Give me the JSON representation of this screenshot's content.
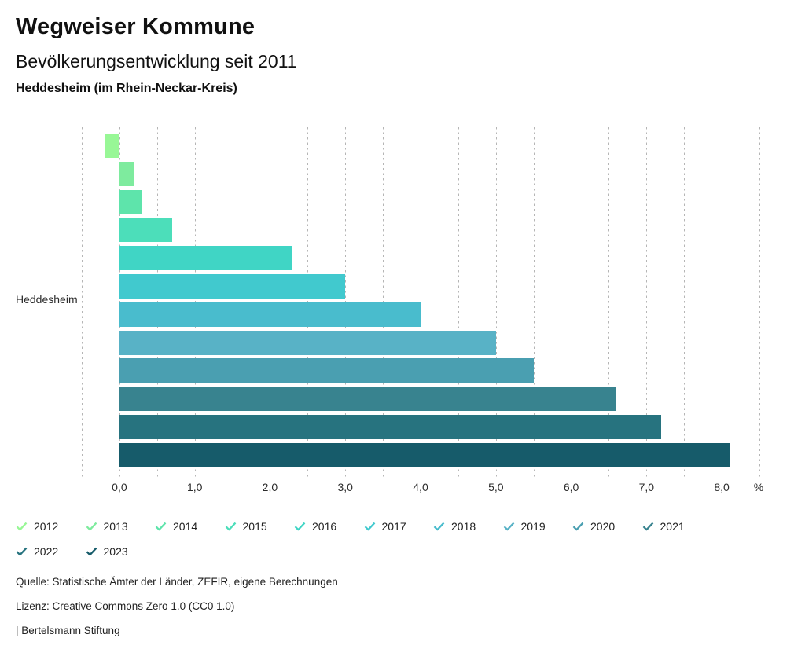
{
  "header": {
    "title": "Wegweiser Kommune",
    "subtitle": "Bevölkerungsentwicklung seit 2011",
    "location": "Heddesheim (im Rhein-Neckar-Kreis)"
  },
  "chart_data": {
    "type": "bar",
    "orientation": "horizontal",
    "title": "Bevölkerungsentwicklung seit 2011",
    "category_axis_label": "Heddesheim",
    "xlabel": "%",
    "xlim": [
      -0.5,
      8.5
    ],
    "grid": true,
    "gridline_step": 0.5,
    "gridline_color": "#b5b5b5",
    "x_tick_values": [
      0,
      1,
      2,
      3,
      4,
      5,
      6,
      7,
      8
    ],
    "x_tick_labels": [
      "0,0",
      "1,0",
      "2,0",
      "3,0",
      "4,0",
      "5,0",
      "6,0",
      "7,0",
      "8,0"
    ],
    "series": [
      {
        "name": "2012",
        "value": -0.2,
        "color": "#98f796"
      },
      {
        "name": "2013",
        "value": 0.2,
        "color": "#7eeb9e"
      },
      {
        "name": "2014",
        "value": 0.3,
        "color": "#5ee4ab"
      },
      {
        "name": "2015",
        "value": 0.7,
        "color": "#4cdeba"
      },
      {
        "name": "2016",
        "value": 2.3,
        "color": "#40d5c5"
      },
      {
        "name": "2017",
        "value": 3.0,
        "color": "#41c9ce"
      },
      {
        "name": "2018",
        "value": 4.0,
        "color": "#49bccd"
      },
      {
        "name": "2019",
        "value": 5.0,
        "color": "#58b2c6"
      },
      {
        "name": "2020",
        "value": 5.5,
        "color": "#4a9fb1"
      },
      {
        "name": "2021",
        "value": 6.6,
        "color": "#38838f"
      },
      {
        "name": "2022",
        "value": 7.2,
        "color": "#27737f"
      },
      {
        "name": "2023",
        "value": 8.1,
        "color": "#165b6a"
      }
    ],
    "legend_position": "bottom",
    "legend_icon": "check-icon"
  },
  "footer": {
    "source": "Quelle: Statistische Ämter der Länder, ZEFIR, eigene Berechnungen",
    "license": "Lizenz: Creative Commons Zero 1.0 (CC0 1.0)",
    "attribution": "| Bertelsmann Stiftung"
  }
}
